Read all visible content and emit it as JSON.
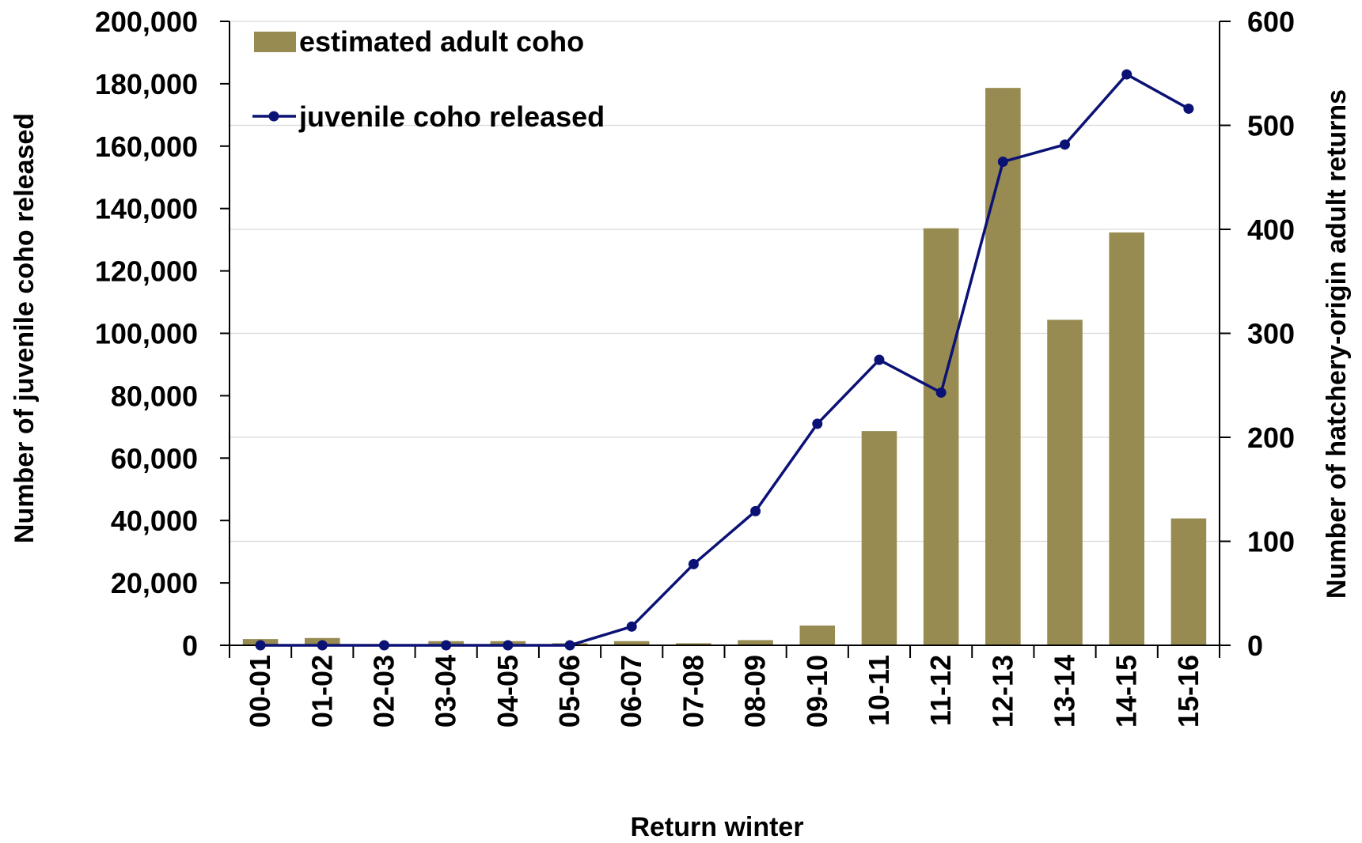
{
  "chart_data": {
    "type": "bar",
    "title": "",
    "xlabel": "Return winter",
    "ylabel_left": "Number of juvenile coho released",
    "ylabel_right": "Number of hatchery-origin adult returns",
    "categories": [
      "00-01",
      "01-02",
      "02-03",
      "03-04",
      "04-05",
      "05-06",
      "06-07",
      "07-08",
      "08-09",
      "09-10",
      "10-11",
      "11-12",
      "12-13",
      "13-14",
      "14-15",
      "15-16"
    ],
    "y_left": {
      "min": 0,
      "max": 200000,
      "step": 20000,
      "ticks": [
        "0",
        "20,000",
        "40,000",
        "60,000",
        "80,000",
        "100,000",
        "120,000",
        "140,000",
        "160,000",
        "180,000",
        "200,000"
      ]
    },
    "y_right": {
      "min": 0,
      "max": 600,
      "step": 100,
      "ticks": [
        "0",
        "100",
        "200",
        "300",
        "400",
        "500",
        "600"
      ]
    },
    "grid": "horizontal, right axis",
    "legend_position": "top-left",
    "series": [
      {
        "name": "estimated adult coho",
        "type": "bar",
        "axis": "right",
        "color": "#978b52",
        "values": [
          6,
          7,
          0,
          4,
          4,
          2,
          4,
          2,
          5,
          19,
          206,
          401,
          536,
          313,
          397,
          122
        ]
      },
      {
        "name": "juvenile coho released",
        "type": "line",
        "axis": "left",
        "color": "#0b1275",
        "values": [
          0,
          0,
          0,
          0,
          0,
          0,
          6000,
          26000,
          43000,
          71000,
          91500,
          81000,
          155000,
          160500,
          183000,
          172000
        ]
      }
    ]
  }
}
